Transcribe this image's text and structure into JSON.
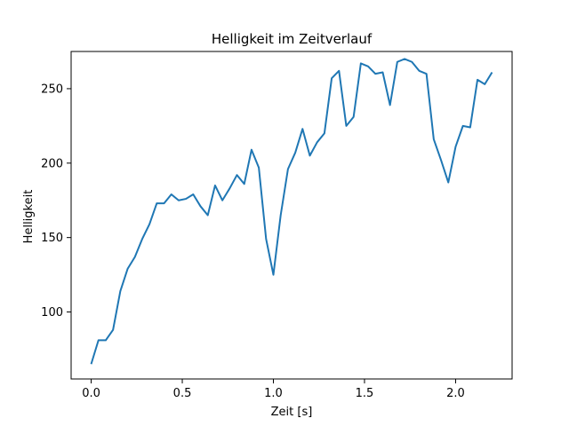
{
  "chart_data": {
    "type": "line",
    "title": "Helligkeit im Zeitverlauf",
    "xlabel": "Zeit [s]",
    "ylabel": "Helligkeit",
    "xlim": [
      -0.11,
      2.31
    ],
    "ylim": [
      55,
      275
    ],
    "xticks": [
      0.0,
      0.5,
      1.0,
      1.5,
      2.0
    ],
    "xtick_labels": [
      "0.0",
      "0.5",
      "1.0",
      "1.5",
      "2.0"
    ],
    "yticks": [
      100,
      150,
      200,
      250
    ],
    "ytick_labels": [
      "100",
      "150",
      "200",
      "250"
    ],
    "grid": false,
    "legend": "none",
    "line_color": "#1f77b4",
    "series": [
      {
        "x": [
          0.0,
          0.04,
          0.08,
          0.12,
          0.16,
          0.2,
          0.24,
          0.28,
          0.32,
          0.36,
          0.4,
          0.44,
          0.48,
          0.52,
          0.56,
          0.6,
          0.64,
          0.68,
          0.72,
          0.76,
          0.8,
          0.84,
          0.88,
          0.92,
          0.96,
          1.0,
          1.04,
          1.08,
          1.12,
          1.16,
          1.2,
          1.24,
          1.28,
          1.32,
          1.36,
          1.4,
          1.44,
          1.48,
          1.52,
          1.56,
          1.6,
          1.64,
          1.68,
          1.72,
          1.76,
          1.8,
          1.84,
          1.88,
          1.92,
          1.96,
          2.0,
          2.04,
          2.08,
          2.12,
          2.16,
          2.2
        ],
        "y": [
          65,
          81,
          81,
          88,
          114,
          129,
          137,
          149,
          159,
          173,
          173,
          179,
          175,
          176,
          179,
          171,
          165,
          185,
          175,
          183,
          192,
          186,
          209,
          197,
          149,
          125,
          165,
          196,
          207,
          223,
          205,
          214,
          220,
          257,
          262,
          225,
          231,
          267,
          265,
          260,
          261,
          239,
          268,
          270,
          268,
          262,
          260,
          216,
          202,
          187,
          211,
          225,
          224,
          256,
          253,
          261
        ]
      }
    ]
  }
}
